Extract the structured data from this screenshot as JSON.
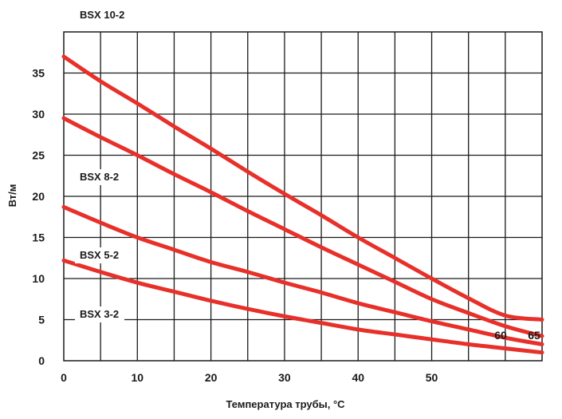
{
  "chart_data": {
    "type": "line",
    "title": "",
    "xlabel": "Температура трубы, °C",
    "ylabel": "Вт/м",
    "xlim": [
      0,
      65
    ],
    "ylim": [
      0,
      40
    ],
    "xticks": [
      0,
      10,
      20,
      30,
      40,
      50
    ],
    "xticks_extra": [
      60,
      65
    ],
    "yticks": [
      0,
      5,
      10,
      15,
      20,
      25,
      30,
      35
    ],
    "grid": true,
    "grid_x_step": 5,
    "grid_y_step": 5,
    "line_color": "#e8302a",
    "series": [
      {
        "name": "BSX 10-2",
        "x": [
          0,
          5,
          10,
          15,
          20,
          25,
          30,
          35,
          40,
          45,
          50,
          55,
          60,
          65
        ],
        "values": [
          37,
          34,
          31.3,
          28.5,
          25.8,
          23,
          20.3,
          17.7,
          15,
          12.5,
          10,
          7.6,
          5.5,
          5
        ]
      },
      {
        "name": "BSX 8-2",
        "x": [
          0,
          5,
          10,
          15,
          20,
          25,
          30,
          35,
          40,
          45,
          50,
          55,
          60,
          65
        ],
        "values": [
          29.5,
          27.2,
          25,
          22.7,
          20.5,
          18.2,
          16,
          13.8,
          11.7,
          9.6,
          7.5,
          5.8,
          4.2,
          3
        ]
      },
      {
        "name": "BSX 5-2",
        "x": [
          0,
          5,
          10,
          15,
          20,
          25,
          30,
          35,
          40,
          45,
          50,
          55,
          60,
          65
        ],
        "values": [
          18.7,
          16.8,
          15,
          13.5,
          12,
          10.8,
          9.5,
          8.3,
          7,
          5.9,
          4.8,
          3.8,
          2.8,
          2.0
        ]
      },
      {
        "name": "BSX 3-2",
        "x": [
          0,
          5,
          10,
          15,
          20,
          25,
          30,
          35,
          40,
          45,
          50,
          55,
          60,
          65
        ],
        "values": [
          12.2,
          10.8,
          9.5,
          8.4,
          7.3,
          6.3,
          5.4,
          4.6,
          3.8,
          3.2,
          2.6,
          2.0,
          1.5,
          1.0
        ]
      }
    ]
  }
}
